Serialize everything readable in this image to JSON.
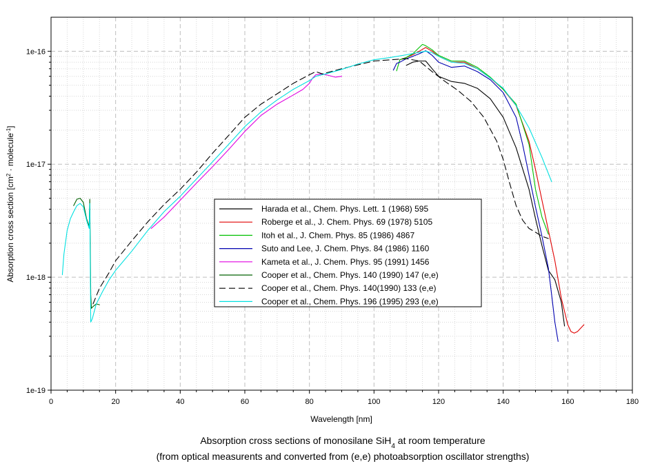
{
  "chart_data": {
    "type": "line",
    "y_scale": "log",
    "xlim": [
      0,
      180
    ],
    "ylim": [
      1e-19,
      2e-16
    ],
    "x_ticks": [
      0,
      20,
      40,
      60,
      80,
      100,
      120,
      140,
      160,
      180
    ],
    "y_ticks": [
      {
        "value": 1e-19,
        "label": "1e-19"
      },
      {
        "value": 1e-18,
        "label": "1e-18"
      },
      {
        "value": 1e-17,
        "label": "1e-17"
      },
      {
        "value": 1e-16,
        "label": "1e-16"
      }
    ],
    "xlabel": "Wavelength [nm]",
    "ylabel": {
      "main": "Absorption cross section [cm",
      "sup1": "2",
      "mid": " · molecule",
      "sup2": "-1",
      "end": "]"
    },
    "caption": {
      "line1_prefix": "Absorption cross sections of monosilane SiH",
      "line1_sub": "4",
      "line1_suffix": " at room temperature",
      "line2": "(from optical measurents and converted from (e,e) photoabsorption oscillator strengths)"
    },
    "grid": true,
    "legend_position": "center",
    "series": [
      {
        "name": "Harada et al., Chem. Phys. Lett. 1 (1968) 595",
        "color": "#000000",
        "dash": "solid",
        "x": [
          110,
          112,
          114,
          116,
          118,
          120,
          124,
          128,
          132,
          136,
          140,
          144,
          148,
          150,
          152,
          154,
          156,
          158,
          159
        ],
        "y": [
          7.5e-17,
          8e-17,
          8.2e-17,
          8.2e-17,
          7e-17,
          6e-17,
          5.4e-17,
          5.2e-17,
          4.7e-17,
          3.8e-17,
          2.6e-17,
          1.4e-17,
          6e-18,
          3.3e-18,
          1.9e-18,
          1.15e-18,
          9.5e-19,
          6e-19,
          3.7e-19
        ]
      },
      {
        "name": "Roberge et al., J. Chem. Phys. 69 (1978) 5105",
        "color": "#e00000",
        "dash": "solid",
        "x": [
          108,
          110,
          112,
          114,
          116,
          118,
          120,
          124,
          128,
          132,
          136,
          140,
          144,
          148,
          150,
          152,
          154,
          156,
          158,
          160,
          161,
          162,
          163,
          165
        ],
        "y": [
          8.4e-17,
          8.8e-17,
          9.3e-17,
          1e-16,
          1.08e-16,
          1e-16,
          9e-17,
          8e-17,
          8e-17,
          7e-17,
          5.8e-17,
          4.6e-17,
          3.3e-17,
          1.6e-17,
          9e-18,
          4.8e-18,
          2.6e-18,
          1.4e-18,
          6.5e-19,
          3.8e-19,
          3.3e-19,
          3.2e-19,
          3.3e-19,
          3.8e-19
        ]
      },
      {
        "name": "Itoh et al.,  J. Chem. Phys. 85 (1986) 4867",
        "color": "#00c000",
        "dash": "solid",
        "x": [
          107,
          108,
          110,
          112,
          114,
          115,
          116,
          118,
          120,
          124,
          128,
          132,
          136,
          140,
          144,
          148,
          150,
          152,
          154
        ],
        "y": [
          6.7e-17,
          8.4e-17,
          8.8e-17,
          9.5e-17,
          1.08e-16,
          1.15e-16,
          1.12e-16,
          1.03e-16,
          9.2e-17,
          8.2e-17,
          8.2e-17,
          7.2e-17,
          5.9e-17,
          4.6e-17,
          3.4e-17,
          1.5e-17,
          6e-18,
          3.4e-18,
          2.4e-18
        ]
      },
      {
        "name": "Suto and Lee, J. Chem. Phys. 84 (1986) 1160",
        "color": "#0000b0",
        "dash": "solid",
        "x": [
          106,
          107,
          108,
          110,
          112,
          114,
          116,
          118,
          120,
          124,
          128,
          132,
          136,
          140,
          144,
          146,
          148,
          150,
          152,
          154,
          155,
          156,
          157
        ],
        "y": [
          6.8e-17,
          7.8e-17,
          8e-17,
          8.6e-17,
          9e-17,
          9.5e-17,
          1.01e-16,
          9.2e-17,
          8e-17,
          7.2e-17,
          7.4e-17,
          6.6e-17,
          5.6e-17,
          4.3e-17,
          2.6e-17,
          1.5e-17,
          8e-18,
          4.2e-18,
          2.3e-18,
          1.2e-18,
          7e-19,
          4e-19,
          2.7e-19
        ]
      },
      {
        "name": "Kameta et al., J. Chem. Phys. 95 (1991) 1456",
        "color": "#e000e0",
        "dash": "solid",
        "x": [
          31,
          35,
          40,
          45,
          50,
          55,
          60,
          65,
          70,
          75,
          78,
          80,
          81,
          82,
          84,
          86,
          88,
          90
        ],
        "y": [
          2.7e-18,
          3.4e-18,
          4.8e-18,
          6.8e-18,
          9.5e-18,
          1.35e-17,
          1.95e-17,
          2.7e-17,
          3.4e-17,
          4.1e-17,
          4.6e-17,
          5.2e-17,
          5.8e-17,
          6.2e-17,
          6.3e-17,
          6.1e-17,
          5.9e-17,
          6e-17
        ]
      },
      {
        "name": "Cooper et al., Chem. Phys. 140 (1990) 147 (e,e)",
        "color": "#006000",
        "dash": "solid",
        "x": [
          7,
          8,
          9,
          10,
          11,
          11.8,
          12,
          12.3,
          12.5,
          13,
          14,
          15
        ],
        "y": [
          4.3e-18,
          4.9e-18,
          5e-18,
          4.6e-18,
          3.3e-18,
          2.8e-18,
          4.9e-18,
          7e-19,
          5.3e-19,
          5.5e-19,
          5.8e-19,
          5.7e-19
        ]
      },
      {
        "name": "Cooper et al.,  Chem. Phys. 140(1990) 133 (e,e)",
        "color": "#000000",
        "dash": "dashed",
        "x": [
          13,
          15,
          18,
          20,
          25,
          30,
          35,
          40,
          45,
          50,
          55,
          60,
          65,
          70,
          75,
          80,
          82,
          84,
          90,
          100,
          110,
          114,
          118,
          122,
          126,
          130,
          134,
          138,
          140,
          142,
          144,
          146,
          148,
          150,
          152,
          154
        ],
        "y": [
          5.8e-19,
          8e-19,
          1.1e-18,
          1.4e-18,
          2.1e-18,
          3.1e-18,
          4.4e-18,
          6e-18,
          8.5e-18,
          1.25e-17,
          1.8e-17,
          2.6e-17,
          3.4e-17,
          4.2e-17,
          5.2e-17,
          6.2e-17,
          6.6e-17,
          6.3e-17,
          7e-17,
          8.2e-17,
          8.6e-17,
          8.2e-17,
          6.6e-17,
          5.4e-17,
          4.5e-17,
          3.6e-17,
          2.6e-17,
          1.6e-17,
          1.1e-17,
          6.8e-18,
          4.3e-18,
          3.2e-18,
          2.7e-18,
          2.5e-18,
          2.3e-18,
          2.2e-18
        ]
      },
      {
        "name": "Cooper et al.,  Chem. Phys. 196 (1995) 293 (e,e)",
        "color": "#00e0e0",
        "dash": "solid",
        "x": [
          3.5,
          4,
          5,
          6,
          7,
          8,
          9,
          10,
          11,
          11.8,
          12,
          12.3,
          12.8,
          14,
          16,
          18,
          20,
          25,
          30,
          35,
          40,
          45,
          50,
          55,
          60,
          65,
          70,
          75,
          80,
          82,
          85,
          90,
          95,
          100,
          105,
          110,
          114,
          116,
          118,
          120,
          124,
          128,
          132,
          136,
          140,
          144,
          148,
          152,
          155
        ],
        "y": [
          1.05e-18,
          1.6e-18,
          2.6e-18,
          3.3e-18,
          3.8e-18,
          4.3e-18,
          4.5e-18,
          4.2e-18,
          3.2e-18,
          2.7e-18,
          4.5e-18,
          4e-19,
          4.3e-19,
          5.8e-19,
          7.5e-19,
          9.5e-19,
          1.15e-18,
          1.7e-18,
          2.6e-18,
          3.8e-18,
          5.2e-18,
          7.4e-18,
          1.05e-17,
          1.5e-17,
          2.15e-17,
          2.9e-17,
          3.7e-17,
          4.6e-17,
          5.5e-17,
          6e-17,
          6.3e-17,
          6.9e-17,
          7.7e-17,
          8.4e-17,
          8.8e-17,
          9.3e-17,
          9.8e-17,
          1e-16,
          9.7e-17,
          9e-17,
          8e-17,
          7.8e-17,
          7e-17,
          5.8e-17,
          4.7e-17,
          3.3e-17,
          2.1e-17,
          1.15e-17,
          7e-18
        ]
      }
    ]
  }
}
